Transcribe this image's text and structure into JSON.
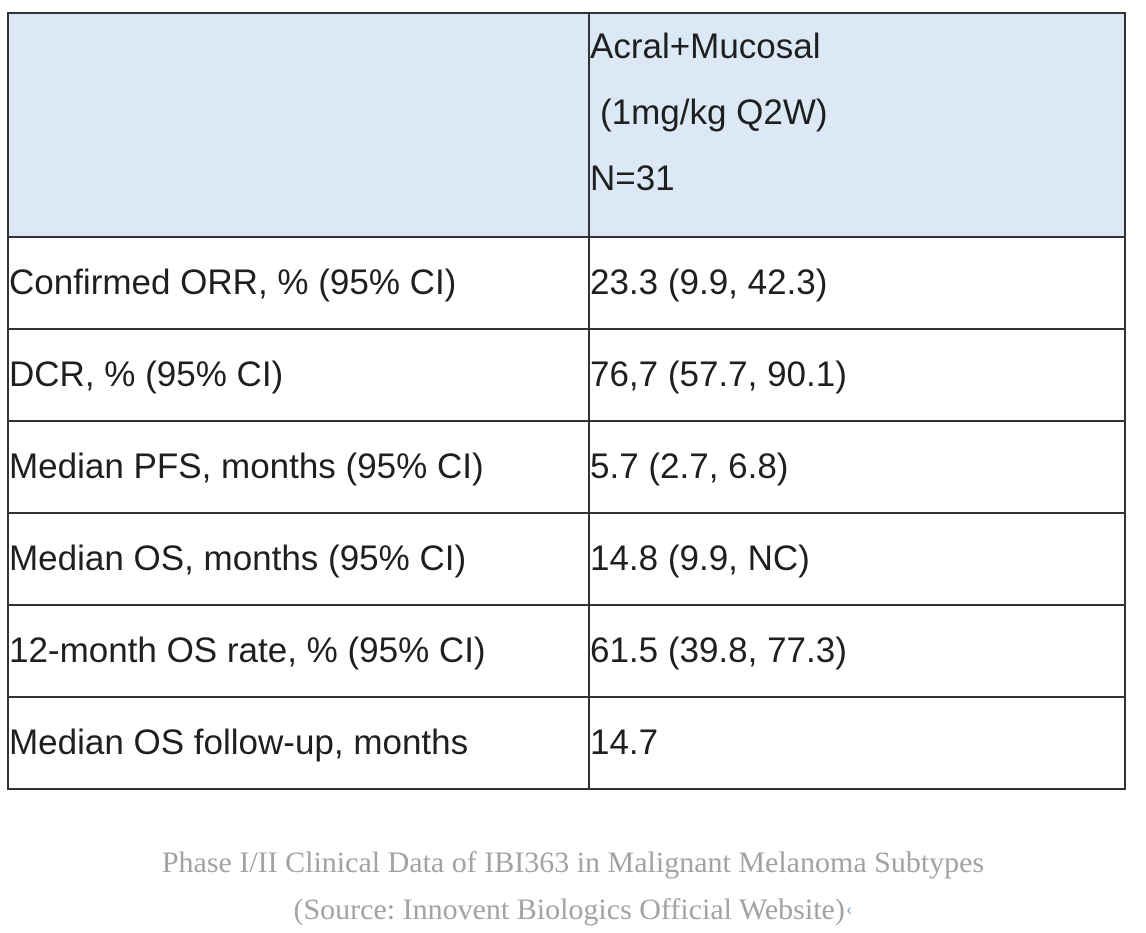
{
  "table": {
    "header": {
      "label_cell": "",
      "value_lines": {
        "line1": "Acral+Mucosal",
        "line2": "(1mg/kg Q2W)",
        "line3": "N=31"
      }
    },
    "rows": [
      {
        "label": "Confirmed ORR, % (95% CI)",
        "value": "23.3 (9.9, 42.3)"
      },
      {
        "label": "DCR, % (95% CI)",
        "value": "76,7 (57.7, 90.1)"
      },
      {
        "label": "Median PFS, months (95% CI)",
        "value": "5.7 (2.7, 6.8)"
      },
      {
        "label": "Median OS, months (95% CI)",
        "value": "14.8 (9.9, NC)"
      },
      {
        "label": "12-month OS rate, % (95% CI)",
        "value": "61.5 (39.8, 77.3)"
      },
      {
        "label": "Median OS follow-up, months",
        "value": "14.7"
      }
    ]
  },
  "caption": {
    "line1": "Phase I/II Clinical Data of IBI363 in Malignant Melanoma Subtypes",
    "line2": "(Source: Innovent Biologics Official Website)",
    "end_mark": "‹"
  },
  "colors": {
    "header_background": "#dce8f5",
    "border": "#333333",
    "body_text": "#1f1f1f",
    "caption_text": "#a3a3a3",
    "end_mark": "#8fa9c4"
  }
}
